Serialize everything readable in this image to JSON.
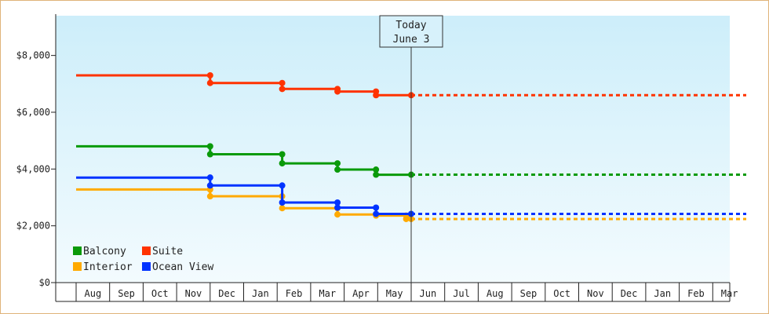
{
  "chart_data": {
    "type": "line",
    "title": "",
    "xlabel": "",
    "ylabel": "",
    "y_ticks": [
      "$0",
      "$2,000",
      "$4,000",
      "$6,000",
      "$8,000"
    ],
    "y_tick_values": [
      0,
      2000,
      4000,
      6000,
      8000
    ],
    "ylim": [
      0,
      9400
    ],
    "x_months": [
      "Aug",
      "Sep",
      "Oct",
      "Nov",
      "Dec",
      "Jan",
      "Feb",
      "Mar",
      "Apr",
      "May",
      "Jun",
      "Jul",
      "Aug",
      "Sep",
      "Oct",
      "Nov",
      "Dec",
      "Jan",
      "Feb",
      "Mar"
    ],
    "x_start_month_index": 0,
    "today": {
      "line1": "Today",
      "line2": "June 3",
      "month_pos": 10.0
    },
    "step_lines": true,
    "projection_end_month_pos": 20.0,
    "grid": false,
    "legend_placement": "bottom-left",
    "series": [
      {
        "name": "Balcony",
        "color": "#0a9a0a",
        "points": [
          [
            0,
            4800
          ],
          [
            4,
            4800
          ],
          [
            4,
            4520
          ],
          [
            6.15,
            4520
          ],
          [
            6.15,
            4200
          ],
          [
            7.8,
            4200
          ],
          [
            7.8,
            3980
          ],
          [
            8.95,
            3980
          ],
          [
            8.95,
            3800
          ],
          [
            10,
            3800
          ]
        ]
      },
      {
        "name": "Suite",
        "color": "#ff3300",
        "points": [
          [
            0,
            7300
          ],
          [
            4,
            7300
          ],
          [
            4,
            7030
          ],
          [
            6.15,
            7030
          ],
          [
            6.15,
            6820
          ],
          [
            7.8,
            6820
          ],
          [
            7.8,
            6730
          ],
          [
            8.95,
            6730
          ],
          [
            8.95,
            6600
          ],
          [
            10,
            6600
          ]
        ]
      },
      {
        "name": "Interior",
        "color": "#ffaa00",
        "points": [
          [
            0,
            3280
          ],
          [
            4,
            3280
          ],
          [
            4,
            3040
          ],
          [
            6.15,
            3040
          ],
          [
            6.15,
            2620
          ],
          [
            7.8,
            2620
          ],
          [
            7.8,
            2400
          ],
          [
            8.95,
            2400
          ],
          [
            8.95,
            2360
          ],
          [
            9.85,
            2360
          ],
          [
            9.85,
            2240
          ],
          [
            10,
            2240
          ]
        ]
      },
      {
        "name": "Ocean View",
        "color": "#0033ff",
        "points": [
          [
            0,
            3700
          ],
          [
            4,
            3700
          ],
          [
            4,
            3420
          ],
          [
            6.15,
            3420
          ],
          [
            6.15,
            2820
          ],
          [
            7.8,
            2820
          ],
          [
            7.8,
            2640
          ],
          [
            8.95,
            2640
          ],
          [
            8.95,
            2420
          ],
          [
            10,
            2420
          ]
        ]
      }
    ]
  }
}
